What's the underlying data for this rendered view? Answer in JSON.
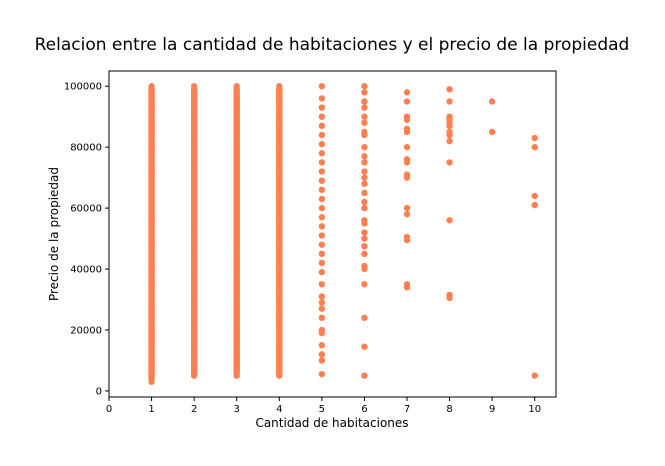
{
  "chart_data": {
    "type": "scatter",
    "title": "Relacion entre la cantidad de habitaciones y el precio de la propiedad",
    "xlabel": "Cantidad de habitaciones",
    "ylabel": "Precio de la propiedad",
    "xlim": [
      0,
      10.5
    ],
    "ylim": [
      -2000,
      105000
    ],
    "xticks": [
      0,
      1,
      2,
      3,
      4,
      5,
      6,
      7,
      8,
      9,
      10
    ],
    "yticks": [
      0,
      20000,
      40000,
      60000,
      80000,
      100000
    ],
    "grid": false,
    "marker_color": "#ff7f50",
    "series": [
      {
        "points": [
          {
            "x": 1,
            "y": 3000
          },
          {
            "x": 1,
            "y": 5000
          },
          {
            "x": 1,
            "y": 8000
          },
          {
            "x": 1,
            "y": 12000
          },
          {
            "x": 1,
            "y": 16000
          },
          {
            "x": 1,
            "y": 20000
          },
          {
            "x": 1,
            "y": 24000
          },
          {
            "x": 1,
            "y": 28000
          },
          {
            "x": 1,
            "y": 32000
          },
          {
            "x": 1,
            "y": 36000
          },
          {
            "x": 1,
            "y": 40000
          },
          {
            "x": 1,
            "y": 44000
          },
          {
            "x": 1,
            "y": 48000
          },
          {
            "x": 1,
            "y": 52000
          },
          {
            "x": 1,
            "y": 56000
          },
          {
            "x": 1,
            "y": 60000
          },
          {
            "x": 1,
            "y": 64000
          },
          {
            "x": 1,
            "y": 68000
          },
          {
            "x": 1,
            "y": 72000
          },
          {
            "x": 1,
            "y": 76000
          },
          {
            "x": 1,
            "y": 80000
          },
          {
            "x": 1,
            "y": 84000
          },
          {
            "x": 1,
            "y": 88000
          },
          {
            "x": 1,
            "y": 92000
          },
          {
            "x": 1,
            "y": 96000
          },
          {
            "x": 1,
            "y": 100000
          },
          {
            "x": 2,
            "y": 5000
          },
          {
            "x": 2,
            "y": 8000
          },
          {
            "x": 2,
            "y": 12000
          },
          {
            "x": 2,
            "y": 16000
          },
          {
            "x": 2,
            "y": 20000
          },
          {
            "x": 2,
            "y": 24000
          },
          {
            "x": 2,
            "y": 28000
          },
          {
            "x": 2,
            "y": 32000
          },
          {
            "x": 2,
            "y": 36000
          },
          {
            "x": 2,
            "y": 40000
          },
          {
            "x": 2,
            "y": 44000
          },
          {
            "x": 2,
            "y": 48000
          },
          {
            "x": 2,
            "y": 52000
          },
          {
            "x": 2,
            "y": 56000
          },
          {
            "x": 2,
            "y": 60000
          },
          {
            "x": 2,
            "y": 64000
          },
          {
            "x": 2,
            "y": 68000
          },
          {
            "x": 2,
            "y": 72000
          },
          {
            "x": 2,
            "y": 76000
          },
          {
            "x": 2,
            "y": 80000
          },
          {
            "x": 2,
            "y": 84000
          },
          {
            "x": 2,
            "y": 88000
          },
          {
            "x": 2,
            "y": 92000
          },
          {
            "x": 2,
            "y": 96000
          },
          {
            "x": 2,
            "y": 100000
          },
          {
            "x": 3,
            "y": 5000
          },
          {
            "x": 3,
            "y": 8000
          },
          {
            "x": 3,
            "y": 12000
          },
          {
            "x": 3,
            "y": 16000
          },
          {
            "x": 3,
            "y": 20000
          },
          {
            "x": 3,
            "y": 24000
          },
          {
            "x": 3,
            "y": 28000
          },
          {
            "x": 3,
            "y": 32000
          },
          {
            "x": 3,
            "y": 36000
          },
          {
            "x": 3,
            "y": 40000
          },
          {
            "x": 3,
            "y": 44000
          },
          {
            "x": 3,
            "y": 48000
          },
          {
            "x": 3,
            "y": 52000
          },
          {
            "x": 3,
            "y": 56000
          },
          {
            "x": 3,
            "y": 60000
          },
          {
            "x": 3,
            "y": 64000
          },
          {
            "x": 3,
            "y": 68000
          },
          {
            "x": 3,
            "y": 72000
          },
          {
            "x": 3,
            "y": 76000
          },
          {
            "x": 3,
            "y": 80000
          },
          {
            "x": 3,
            "y": 84000
          },
          {
            "x": 3,
            "y": 88000
          },
          {
            "x": 3,
            "y": 92000
          },
          {
            "x": 3,
            "y": 96000
          },
          {
            "x": 3,
            "y": 100000
          },
          {
            "x": 4,
            "y": 5000
          },
          {
            "x": 4,
            "y": 8000
          },
          {
            "x": 4,
            "y": 12000
          },
          {
            "x": 4,
            "y": 15000
          },
          {
            "x": 4,
            "y": 18000
          },
          {
            "x": 4,
            "y": 22000
          },
          {
            "x": 4,
            "y": 26000
          },
          {
            "x": 4,
            "y": 30000
          },
          {
            "x": 4,
            "y": 34000
          },
          {
            "x": 4,
            "y": 38000
          },
          {
            "x": 4,
            "y": 42000
          },
          {
            "x": 4,
            "y": 46000
          },
          {
            "x": 4,
            "y": 50000
          },
          {
            "x": 4,
            "y": 54000
          },
          {
            "x": 4,
            "y": 58000
          },
          {
            "x": 4,
            "y": 62000
          },
          {
            "x": 4,
            "y": 66000
          },
          {
            "x": 4,
            "y": 70000
          },
          {
            "x": 4,
            "y": 74000
          },
          {
            "x": 4,
            "y": 78000
          },
          {
            "x": 4,
            "y": 82000
          },
          {
            "x": 4,
            "y": 86000
          },
          {
            "x": 4,
            "y": 90000
          },
          {
            "x": 4,
            "y": 94000
          },
          {
            "x": 4,
            "y": 98000
          },
          {
            "x": 4,
            "y": 100000
          },
          {
            "x": 5,
            "y": 5500
          },
          {
            "x": 5,
            "y": 10000
          },
          {
            "x": 5,
            "y": 12000
          },
          {
            "x": 5,
            "y": 15000
          },
          {
            "x": 5,
            "y": 19000
          },
          {
            "x": 5,
            "y": 20000
          },
          {
            "x": 5,
            "y": 24000
          },
          {
            "x": 5,
            "y": 27000
          },
          {
            "x": 5,
            "y": 29000
          },
          {
            "x": 5,
            "y": 31000
          },
          {
            "x": 5,
            "y": 35000
          },
          {
            "x": 5,
            "y": 39000
          },
          {
            "x": 5,
            "y": 42000
          },
          {
            "x": 5,
            "y": 45000
          },
          {
            "x": 5,
            "y": 48000
          },
          {
            "x": 5,
            "y": 51000
          },
          {
            "x": 5,
            "y": 54000
          },
          {
            "x": 5,
            "y": 57000
          },
          {
            "x": 5,
            "y": 60000
          },
          {
            "x": 5,
            "y": 63000
          },
          {
            "x": 5,
            "y": 66000
          },
          {
            "x": 5,
            "y": 69000
          },
          {
            "x": 5,
            "y": 72000
          },
          {
            "x": 5,
            "y": 75000
          },
          {
            "x": 5,
            "y": 78000
          },
          {
            "x": 5,
            "y": 81000
          },
          {
            "x": 5,
            "y": 84000
          },
          {
            "x": 5,
            "y": 87000
          },
          {
            "x": 5,
            "y": 90000
          },
          {
            "x": 5,
            "y": 93000
          },
          {
            "x": 5,
            "y": 96000
          },
          {
            "x": 5,
            "y": 100000
          },
          {
            "x": 6,
            "y": 5000
          },
          {
            "x": 6,
            "y": 14500
          },
          {
            "x": 6,
            "y": 24000
          },
          {
            "x": 6,
            "y": 35000
          },
          {
            "x": 6,
            "y": 40000
          },
          {
            "x": 6,
            "y": 41000
          },
          {
            "x": 6,
            "y": 45000
          },
          {
            "x": 6,
            "y": 47500
          },
          {
            "x": 6,
            "y": 50000
          },
          {
            "x": 6,
            "y": 52000
          },
          {
            "x": 6,
            "y": 55000
          },
          {
            "x": 6,
            "y": 56000
          },
          {
            "x": 6,
            "y": 60000
          },
          {
            "x": 6,
            "y": 62000
          },
          {
            "x": 6,
            "y": 65000
          },
          {
            "x": 6,
            "y": 68000
          },
          {
            "x": 6,
            "y": 70000
          },
          {
            "x": 6,
            "y": 72000
          },
          {
            "x": 6,
            "y": 75000
          },
          {
            "x": 6,
            "y": 77000
          },
          {
            "x": 6,
            "y": 80000
          },
          {
            "x": 6,
            "y": 84000
          },
          {
            "x": 6,
            "y": 85000
          },
          {
            "x": 6,
            "y": 88000
          },
          {
            "x": 6,
            "y": 90000
          },
          {
            "x": 6,
            "y": 93000
          },
          {
            "x": 6,
            "y": 95000
          },
          {
            "x": 6,
            "y": 98000
          },
          {
            "x": 6,
            "y": 100000
          },
          {
            "x": 7,
            "y": 34000
          },
          {
            "x": 7,
            "y": 35000
          },
          {
            "x": 7,
            "y": 49500
          },
          {
            "x": 7,
            "y": 50500
          },
          {
            "x": 7,
            "y": 58000
          },
          {
            "x": 7,
            "y": 60000
          },
          {
            "x": 7,
            "y": 70000
          },
          {
            "x": 7,
            "y": 71000
          },
          {
            "x": 7,
            "y": 75000
          },
          {
            "x": 7,
            "y": 76000
          },
          {
            "x": 7,
            "y": 80000
          },
          {
            "x": 7,
            "y": 85000
          },
          {
            "x": 7,
            "y": 86000
          },
          {
            "x": 7,
            "y": 89000
          },
          {
            "x": 7,
            "y": 90000
          },
          {
            "x": 7,
            "y": 95000
          },
          {
            "x": 7,
            "y": 98000
          },
          {
            "x": 8,
            "y": 30500
          },
          {
            "x": 8,
            "y": 31500
          },
          {
            "x": 8,
            "y": 56000
          },
          {
            "x": 8,
            "y": 75000
          },
          {
            "x": 8,
            "y": 82000
          },
          {
            "x": 8,
            "y": 84000
          },
          {
            "x": 8,
            "y": 85000
          },
          {
            "x": 8,
            "y": 87000
          },
          {
            "x": 8,
            "y": 88000
          },
          {
            "x": 8,
            "y": 89000
          },
          {
            "x": 8,
            "y": 90000
          },
          {
            "x": 8,
            "y": 95000
          },
          {
            "x": 8,
            "y": 99000
          },
          {
            "x": 9,
            "y": 85000
          },
          {
            "x": 9,
            "y": 95000
          },
          {
            "x": 10,
            "y": 5000
          },
          {
            "x": 10,
            "y": 61000
          },
          {
            "x": 10,
            "y": 64000
          },
          {
            "x": 10,
            "y": 80000
          },
          {
            "x": 10,
            "y": 83000
          }
        ]
      }
    ]
  }
}
